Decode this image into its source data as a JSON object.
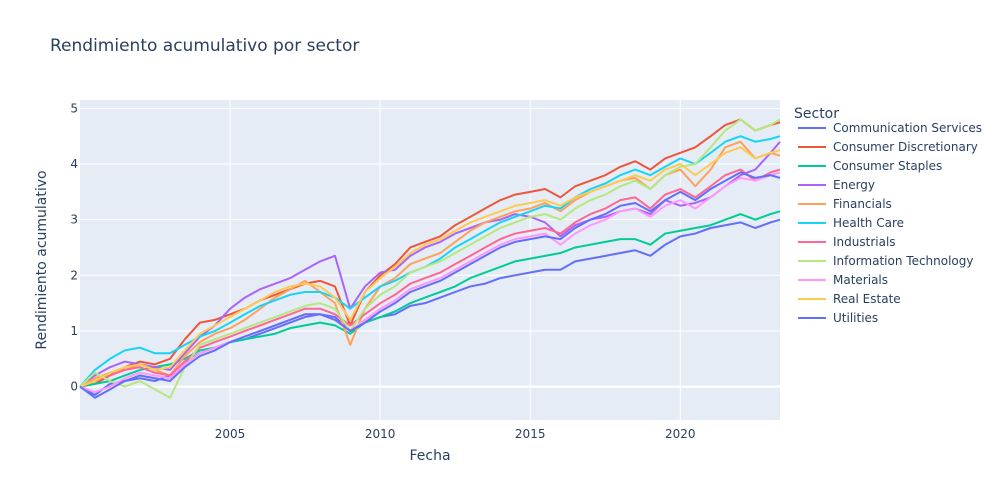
{
  "chart_data": {
    "type": "line",
    "title": "Rendimiento acumulativo por sector",
    "xlabel": "Fecha",
    "ylabel": "Rendimiento acumulativo",
    "legend_title": "Sector",
    "legend_position": "right",
    "grid": true,
    "xlim": [
      "2000-01-03",
      "2023-04-28"
    ],
    "ylim": [
      -0.6,
      5.15
    ],
    "x_ticks": [
      2005,
      2010,
      2015,
      2020
    ],
    "y_ticks": [
      0,
      1,
      2,
      3,
      4,
      5
    ],
    "x_dates": [
      "2000-01-03",
      "2000-07-03",
      "2001-01-02",
      "2001-07-02",
      "2002-01-02",
      "2002-07-01",
      "2003-01-02",
      "2003-07-01",
      "2004-01-02",
      "2004-07-01",
      "2005-01-03",
      "2005-07-01",
      "2006-01-03",
      "2006-07-03",
      "2007-01-03",
      "2007-07-02",
      "2008-01-02",
      "2008-07-01",
      "2009-01-02",
      "2009-07-01",
      "2010-01-04",
      "2010-07-01",
      "2011-01-03",
      "2011-07-01",
      "2012-01-03",
      "2012-07-02",
      "2013-01-02",
      "2013-07-01",
      "2014-01-02",
      "2014-07-01",
      "2015-01-02",
      "2015-07-01",
      "2016-01-04",
      "2016-07-01",
      "2017-01-03",
      "2017-07-03",
      "2018-01-02",
      "2018-07-02",
      "2019-01-02",
      "2019-07-01",
      "2020-01-02",
      "2020-07-01",
      "2021-01-04",
      "2021-07-01",
      "2022-01-03",
      "2022-07-01",
      "2023-01-03",
      "2023-04-28"
    ],
    "series": [
      {
        "name": "Communication Services",
        "color": "#636efa",
        "values": [
          0.0,
          -0.15,
          0.05,
          0.1,
          0.15,
          0.1,
          0.2,
          0.45,
          0.6,
          0.7,
          0.8,
          0.85,
          0.95,
          1.05,
          1.15,
          1.25,
          1.3,
          1.25,
          1.0,
          1.15,
          1.25,
          1.3,
          1.45,
          1.5,
          1.6,
          1.7,
          1.8,
          1.85,
          1.95,
          2.0,
          2.05,
          2.1,
          2.1,
          2.25,
          2.3,
          2.35,
          2.4,
          2.45,
          2.35,
          2.55,
          2.7,
          2.75,
          2.85,
          2.9,
          2.95,
          2.85,
          2.95,
          3.0
        ]
      },
      {
        "name": "Consumer Discretionary",
        "color": "#ef553b",
        "values": [
          0.0,
          0.05,
          0.2,
          0.35,
          0.45,
          0.4,
          0.5,
          0.85,
          1.15,
          1.2,
          1.3,
          1.4,
          1.55,
          1.65,
          1.75,
          1.85,
          1.9,
          1.8,
          1.1,
          1.7,
          2.0,
          2.2,
          2.5,
          2.6,
          2.7,
          2.9,
          3.05,
          3.2,
          3.35,
          3.45,
          3.5,
          3.55,
          3.4,
          3.6,
          3.7,
          3.8,
          3.95,
          4.05,
          3.9,
          4.1,
          4.2,
          4.3,
          4.5,
          4.7,
          4.8,
          4.6,
          4.7,
          4.75
        ]
      },
      {
        "name": "Consumer Staples",
        "color": "#00cc96",
        "values": [
          0.0,
          0.05,
          0.1,
          0.2,
          0.3,
          0.35,
          0.4,
          0.5,
          0.65,
          0.7,
          0.8,
          0.85,
          0.9,
          0.95,
          1.05,
          1.1,
          1.15,
          1.1,
          0.95,
          1.15,
          1.25,
          1.35,
          1.5,
          1.6,
          1.7,
          1.8,
          1.95,
          2.05,
          2.15,
          2.25,
          2.3,
          2.35,
          2.4,
          2.5,
          2.55,
          2.6,
          2.65,
          2.65,
          2.55,
          2.75,
          2.8,
          2.85,
          2.9,
          3.0,
          3.1,
          3.0,
          3.1,
          3.15
        ]
      },
      {
        "name": "Energy",
        "color": "#ab63fa",
        "values": [
          0.0,
          0.2,
          0.35,
          0.45,
          0.4,
          0.35,
          0.3,
          0.6,
          0.9,
          1.1,
          1.4,
          1.6,
          1.75,
          1.85,
          1.95,
          2.1,
          2.25,
          2.35,
          1.4,
          1.8,
          2.05,
          2.1,
          2.35,
          2.5,
          2.6,
          2.75,
          2.85,
          2.95,
          3.0,
          3.1,
          3.05,
          2.95,
          2.7,
          2.9,
          3.0,
          3.05,
          3.15,
          3.2,
          3.1,
          3.35,
          3.25,
          3.3,
          3.4,
          3.6,
          3.8,
          3.9,
          4.2,
          4.4
        ]
      },
      {
        "name": "Financials",
        "color": "#ffa15a",
        "values": [
          0.0,
          0.15,
          0.25,
          0.3,
          0.4,
          0.3,
          0.2,
          0.55,
          0.8,
          0.95,
          1.05,
          1.2,
          1.4,
          1.6,
          1.75,
          1.9,
          1.7,
          1.5,
          0.75,
          1.4,
          1.8,
          1.95,
          2.2,
          2.3,
          2.4,
          2.6,
          2.8,
          2.95,
          3.05,
          3.15,
          3.2,
          3.3,
          3.15,
          3.35,
          3.5,
          3.6,
          3.7,
          3.75,
          3.55,
          3.8,
          3.9,
          3.6,
          3.9,
          4.3,
          4.4,
          4.1,
          4.2,
          4.15
        ]
      },
      {
        "name": "Health Care",
        "color": "#19d3f3",
        "values": [
          0.0,
          0.3,
          0.5,
          0.65,
          0.7,
          0.6,
          0.6,
          0.75,
          0.9,
          1.0,
          1.15,
          1.3,
          1.45,
          1.55,
          1.65,
          1.7,
          1.7,
          1.6,
          1.4,
          1.6,
          1.8,
          1.9,
          2.05,
          2.15,
          2.3,
          2.5,
          2.65,
          2.8,
          2.95,
          3.05,
          3.15,
          3.25,
          3.2,
          3.4,
          3.55,
          3.65,
          3.8,
          3.9,
          3.8,
          3.95,
          4.1,
          4.0,
          4.2,
          4.4,
          4.5,
          4.4,
          4.45,
          4.5
        ]
      },
      {
        "name": "Industrials",
        "color": "#ff6692",
        "values": [
          0.0,
          0.1,
          0.2,
          0.3,
          0.35,
          0.25,
          0.2,
          0.45,
          0.7,
          0.8,
          0.9,
          1.0,
          1.1,
          1.2,
          1.3,
          1.4,
          1.4,
          1.3,
          1.1,
          1.3,
          1.5,
          1.65,
          1.85,
          1.95,
          2.05,
          2.2,
          2.35,
          2.5,
          2.65,
          2.75,
          2.8,
          2.85,
          2.75,
          2.95,
          3.1,
          3.2,
          3.35,
          3.4,
          3.2,
          3.45,
          3.55,
          3.4,
          3.6,
          3.8,
          3.9,
          3.7,
          3.85,
          3.9
        ]
      },
      {
        "name": "Information Technology",
        "color": "#b6e880",
        "values": [
          0.0,
          0.25,
          0.1,
          0.0,
          0.1,
          -0.05,
          -0.2,
          0.35,
          0.75,
          0.85,
          0.95,
          1.05,
          1.15,
          1.25,
          1.35,
          1.45,
          1.5,
          1.4,
          1.0,
          1.4,
          1.65,
          1.8,
          2.05,
          2.15,
          2.25,
          2.4,
          2.55,
          2.7,
          2.85,
          2.95,
          3.05,
          3.1,
          3.0,
          3.2,
          3.35,
          3.45,
          3.6,
          3.7,
          3.55,
          3.8,
          3.95,
          4.0,
          4.3,
          4.6,
          4.8,
          4.6,
          4.7,
          4.8
        ]
      },
      {
        "name": "Materials",
        "color": "#ff97ff",
        "values": [
          0.0,
          -0.1,
          0.0,
          0.15,
          0.25,
          0.2,
          0.15,
          0.4,
          0.6,
          0.7,
          0.8,
          0.9,
          1.0,
          1.1,
          1.2,
          1.3,
          1.3,
          1.2,
          1.0,
          1.2,
          1.4,
          1.55,
          1.75,
          1.85,
          1.95,
          2.1,
          2.25,
          2.4,
          2.55,
          2.65,
          2.7,
          2.75,
          2.55,
          2.75,
          2.9,
          3.0,
          3.15,
          3.2,
          3.05,
          3.25,
          3.35,
          3.2,
          3.4,
          3.6,
          3.75,
          3.7,
          3.8,
          3.85
        ]
      },
      {
        "name": "Real Estate",
        "color": "#fecb52",
        "values": [
          0.0,
          0.1,
          0.25,
          0.35,
          0.4,
          0.3,
          0.35,
          0.65,
          0.95,
          1.1,
          1.25,
          1.4,
          1.55,
          1.7,
          1.8,
          1.85,
          1.8,
          1.6,
          1.2,
          1.7,
          1.95,
          2.15,
          2.4,
          2.55,
          2.65,
          2.8,
          2.95,
          3.05,
          3.15,
          3.25,
          3.3,
          3.35,
          3.25,
          3.4,
          3.5,
          3.6,
          3.7,
          3.8,
          3.7,
          3.9,
          4.0,
          3.8,
          4.0,
          4.2,
          4.3,
          4.1,
          4.2,
          4.25
        ]
      },
      {
        "name": "Utilities",
        "color": "#636efa",
        "values": [
          0.0,
          -0.2,
          -0.05,
          0.1,
          0.2,
          0.15,
          0.1,
          0.35,
          0.55,
          0.65,
          0.8,
          0.9,
          1.0,
          1.1,
          1.2,
          1.3,
          1.3,
          1.2,
          1.0,
          1.15,
          1.35,
          1.5,
          1.7,
          1.8,
          1.9,
          2.05,
          2.2,
          2.35,
          2.5,
          2.6,
          2.65,
          2.7,
          2.65,
          2.85,
          3.0,
          3.1,
          3.25,
          3.3,
          3.15,
          3.35,
          3.5,
          3.35,
          3.55,
          3.7,
          3.85,
          3.75,
          3.8,
          3.75
        ]
      }
    ]
  }
}
